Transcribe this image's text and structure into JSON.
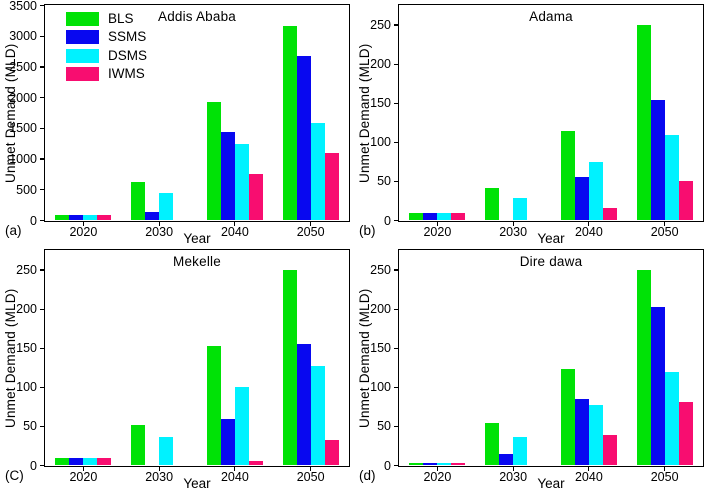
{
  "figure": {
    "background": "#ffffff",
    "xlabel": "Year",
    "ylabel": "Unmet Demand (MLD)"
  },
  "legend": {
    "position": "top-left of panel (a)",
    "items": [
      {
        "name": "BLS",
        "color": "#00E206"
      },
      {
        "name": "SSMS",
        "color": "#0808F0"
      },
      {
        "name": "DSMS",
        "color": "#00F2FF"
      },
      {
        "name": "IWMS",
        "color": "#F80D70"
      }
    ]
  },
  "chart_data": [
    {
      "type": "bar",
      "panel_label": "(a)",
      "title": "Addis Ababa",
      "xlabel": "Year",
      "ylabel": "Unmet Demand (MLD)",
      "categories": [
        "2020",
        "2030",
        "2040",
        "2050"
      ],
      "series": [
        {
          "name": "BLS",
          "color": "#00E206",
          "values": [
            85,
            630,
            1930,
            3170
          ]
        },
        {
          "name": "SSMS",
          "color": "#0808F0",
          "values": [
            85,
            140,
            1440,
            2680
          ]
        },
        {
          "name": "DSMS",
          "color": "#00F2FF",
          "values": [
            85,
            440,
            1250,
            1590
          ]
        },
        {
          "name": "IWMS",
          "color": "#F80D70",
          "values": [
            85,
            0,
            755,
            1095
          ]
        }
      ],
      "ylim": [
        0,
        3500
      ],
      "yticks": [
        0,
        500,
        1000,
        1500,
        2000,
        2500,
        3000,
        3500
      ],
      "grid": false,
      "show_legend": true
    },
    {
      "type": "bar",
      "panel_label": "(b)",
      "title": "Adama",
      "xlabel": "Year",
      "ylabel": "Unmet Demand (MLD)",
      "categories": [
        "2020",
        "2030",
        "2040",
        "2050"
      ],
      "series": [
        {
          "name": "BLS",
          "color": "#00E206",
          "values": [
            10,
            41,
            114,
            250
          ]
        },
        {
          "name": "SSMS",
          "color": "#0808F0",
          "values": [
            10,
            0,
            56,
            154
          ]
        },
        {
          "name": "DSMS",
          "color": "#00F2FF",
          "values": [
            10,
            29,
            75,
            109
          ]
        },
        {
          "name": "IWMS",
          "color": "#F80D70",
          "values": [
            10,
            0,
            16,
            50
          ]
        }
      ],
      "ylim": [
        0,
        275
      ],
      "yticks": [
        0,
        50,
        100,
        150,
        200,
        250
      ],
      "grid": false,
      "show_legend": false
    },
    {
      "type": "bar",
      "panel_label": "(C)",
      "title": "Mekelle",
      "xlabel": "Year",
      "ylabel": "Unmet Demand (MLD)",
      "categories": [
        "2020",
        "2030",
        "2040",
        "2050"
      ],
      "series": [
        {
          "name": "BLS",
          "color": "#00E206",
          "values": [
            9,
            52,
            153,
            250
          ]
        },
        {
          "name": "SSMS",
          "color": "#0808F0",
          "values": [
            9,
            0,
            59,
            156
          ]
        },
        {
          "name": "DSMS",
          "color": "#00F2FF",
          "values": [
            9,
            36,
            100,
            127
          ]
        },
        {
          "name": "IWMS",
          "color": "#F80D70",
          "values": [
            9,
            0,
            6,
            33
          ]
        }
      ],
      "ylim": [
        0,
        275
      ],
      "yticks": [
        0,
        50,
        100,
        150,
        200,
        250
      ],
      "grid": false,
      "show_legend": false
    },
    {
      "type": "bar",
      "panel_label": "(d)",
      "title": "Dire dawa",
      "xlabel": "Year",
      "ylabel": "Unmet Demand (MLD)",
      "categories": [
        "2020",
        "2030",
        "2040",
        "2050"
      ],
      "series": [
        {
          "name": "BLS",
          "color": "#00E206",
          "values": [
            3,
            54,
            124,
            250
          ]
        },
        {
          "name": "SSMS",
          "color": "#0808F0",
          "values": [
            3,
            15,
            85,
            203
          ]
        },
        {
          "name": "DSMS",
          "color": "#00F2FF",
          "values": [
            3,
            37,
            77,
            120
          ]
        },
        {
          "name": "IWMS",
          "color": "#F80D70",
          "values": [
            3,
            0,
            39,
            81
          ]
        }
      ],
      "ylim": [
        0,
        275
      ],
      "yticks": [
        0,
        50,
        100,
        150,
        200,
        250
      ],
      "grid": false,
      "show_legend": false
    }
  ]
}
